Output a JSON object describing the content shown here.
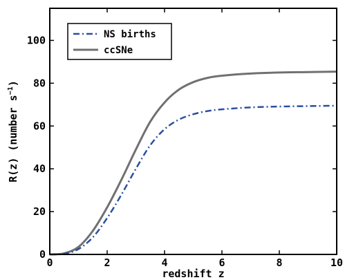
{
  "chart_data": {
    "type": "line",
    "xlabel": "redshift z",
    "ylabel": "R(z)  (number s",
    "ylabel_sup": "−1",
    "ylabel_close": ")",
    "xlim": [
      0,
      10
    ],
    "ylim": [
      0,
      115
    ],
    "xticks": [
      0,
      2,
      4,
      6,
      8,
      10
    ],
    "yticks": [
      0,
      20,
      40,
      60,
      80,
      100
    ],
    "grid": false,
    "legend_position": "top-left",
    "series": [
      {
        "name": "NS births",
        "color": "#2a4fa0",
        "style": "dash-dot",
        "x": [
          0,
          0.5,
          1,
          1.5,
          2,
          2.5,
          3,
          3.5,
          4,
          4.5,
          5,
          5.5,
          6,
          7,
          8,
          9,
          10
        ],
        "y": [
          0,
          0.3,
          2.5,
          8,
          17,
          28,
          40,
          51,
          58.5,
          63,
          65.5,
          67,
          67.8,
          68.7,
          69.1,
          69.3,
          69.5
        ]
      },
      {
        "name": "ccSNe",
        "color": "#707070",
        "style": "solid",
        "x": [
          0,
          0.5,
          1,
          1.5,
          2,
          2.5,
          3,
          3.5,
          4,
          4.5,
          5,
          5.5,
          6,
          7,
          8,
          9,
          10
        ],
        "y": [
          0,
          0.5,
          3.5,
          11,
          22,
          35,
          49,
          62,
          71,
          77,
          80.5,
          82.5,
          83.5,
          84.5,
          85,
          85.2,
          85.4
        ]
      }
    ]
  }
}
